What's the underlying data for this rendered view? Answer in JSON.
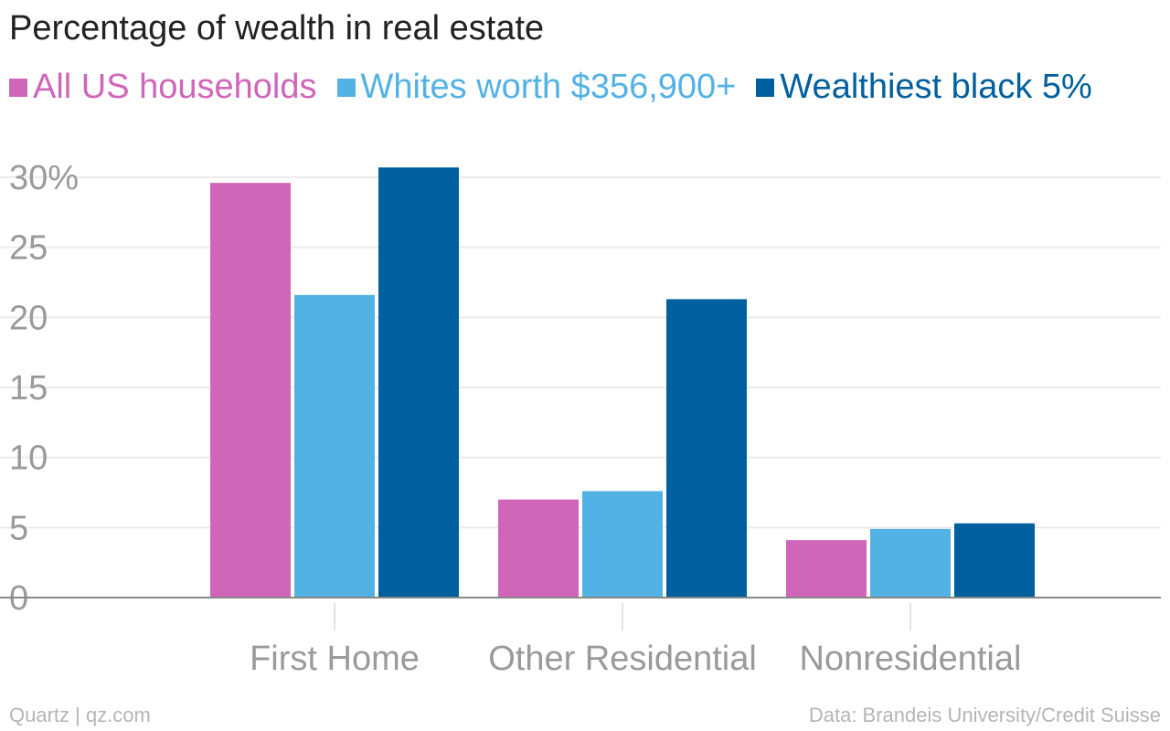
{
  "chart_data": {
    "type": "bar",
    "title": "Percentage of wealth in real estate",
    "categories": [
      "First Home",
      "Other Residential",
      "Nonresidential"
    ],
    "series": [
      {
        "name": "All US households",
        "color": "#d066b9",
        "values": [
          29.6,
          7.0,
          4.1
        ]
      },
      {
        "name": "Whites worth $356,900+",
        "color": "#53b2e4",
        "values": [
          21.6,
          7.6,
          4.9
        ]
      },
      {
        "name": "Wealthiest black 5%",
        "color": "#005f9e",
        "values": [
          30.7,
          21.3,
          5.3
        ]
      }
    ],
    "y_ticks": [
      {
        "value": 0,
        "label": "0"
      },
      {
        "value": 5,
        "label": "5"
      },
      {
        "value": 10,
        "label": "10"
      },
      {
        "value": 15,
        "label": "15"
      },
      {
        "value": 20,
        "label": "20"
      },
      {
        "value": 25,
        "label": "25"
      },
      {
        "value": 30,
        "label": "30%"
      }
    ],
    "xlabel": "",
    "ylabel": "",
    "ylim": [
      0,
      30
    ],
    "grid": true,
    "legend_position": "top-left"
  },
  "footer": {
    "source_left": "Quartz | qz.com",
    "source_right": "Data: Brandeis University/Credit Suisse"
  }
}
